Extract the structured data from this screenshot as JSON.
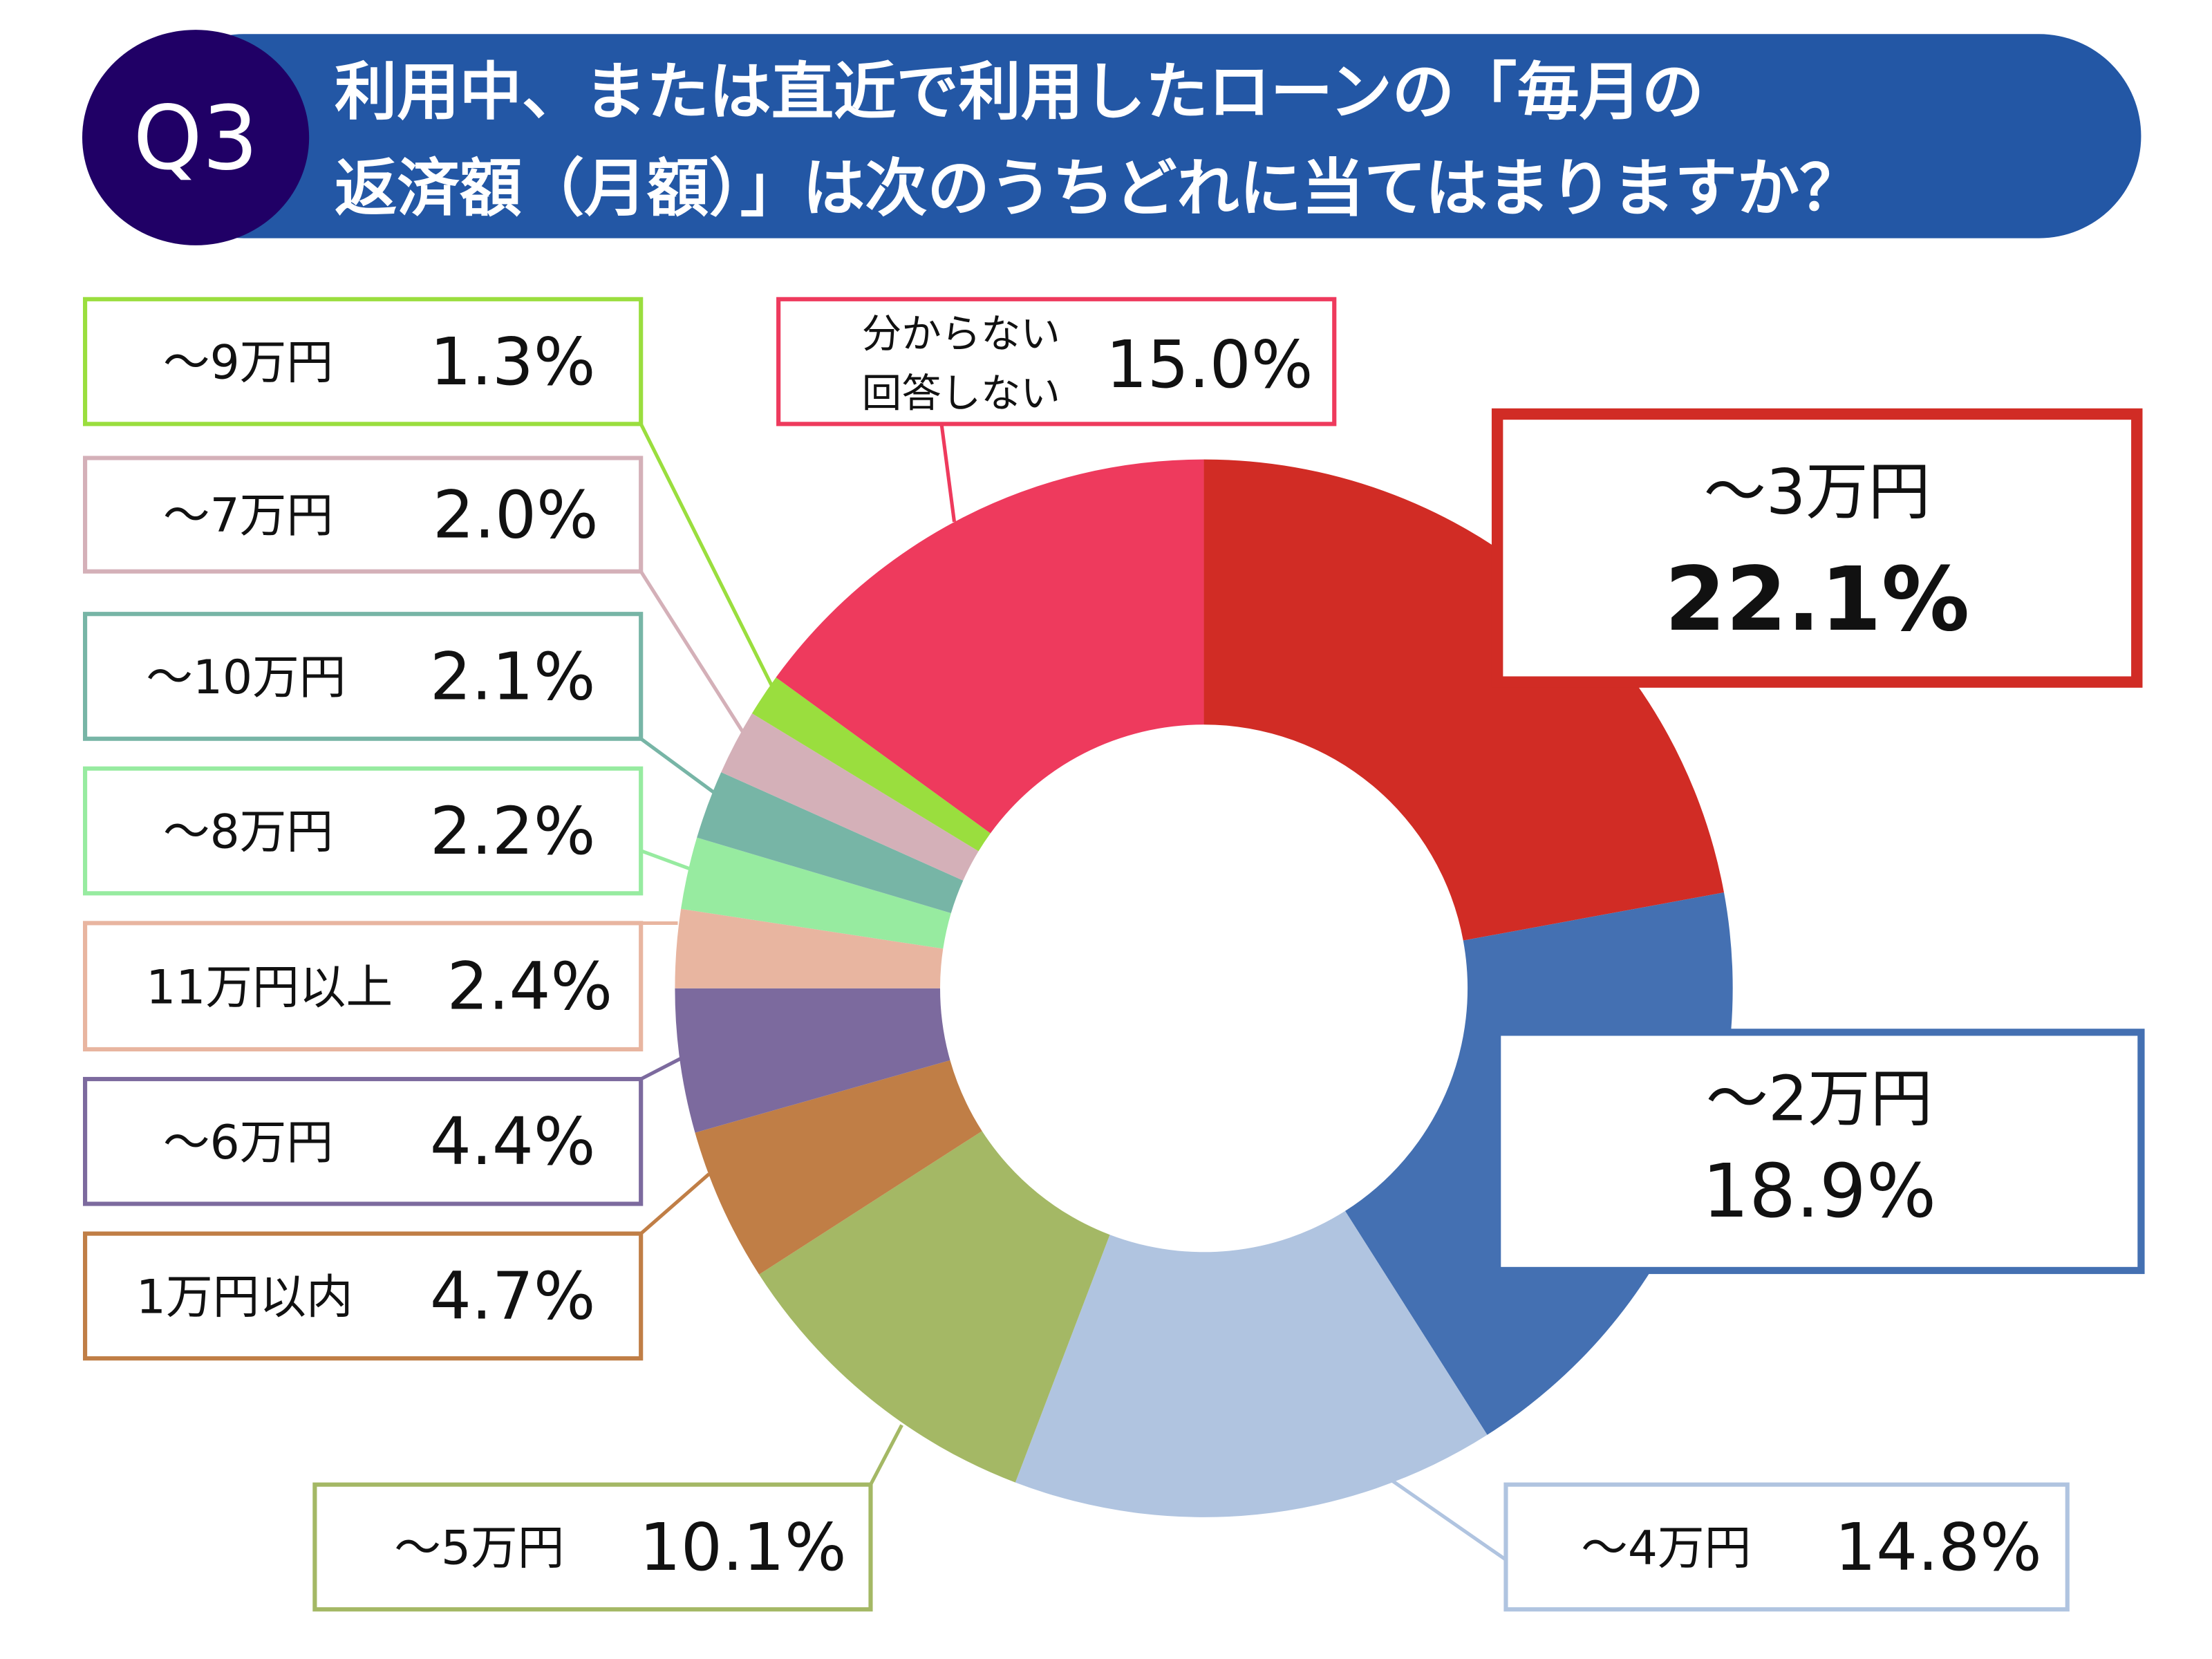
{
  "header": {
    "badge": "Q3",
    "title_line1": "利用中、または直近で利用したローンの「毎月の",
    "title_line2": "返済額（月額）」は次のうちどれに当てはまりますか？",
    "badge_color": "#200066",
    "bar_color": "#2357A5"
  },
  "chart_data": {
    "type": "pie",
    "donut": true,
    "start": "top",
    "direction": "clockwise",
    "title": "利用中、または直近で利用したローンの「毎月の返済額（月額）」は次のうちどれに当てはまりますか？",
    "unit": "%",
    "categories": [
      "～3万円",
      "～2万円",
      "～4万円",
      "～5万円",
      "1万円以内",
      "～6万円",
      "11万円以上",
      "～8万円",
      "～10万円",
      "～7万円",
      "～9万円",
      "分からない 回答しない"
    ],
    "values": [
      22.1,
      18.9,
      14.8,
      10.1,
      4.7,
      4.4,
      2.4,
      2.2,
      2.1,
      2.0,
      1.3,
      15.0
    ],
    "colors": [
      "#D12C25",
      "#4470B2",
      "#B0C4E0",
      "#A4B865",
      "#C07E46",
      "#7C6A9E",
      "#E8B5A0",
      "#97EBA0",
      "#77B5A6",
      "#D4B0B8",
      "#9ADE3E",
      "#EE3A5D"
    ],
    "labels": [
      {
        "name": "～3万円",
        "value": "22.1%"
      },
      {
        "name": "～2万円",
        "value": "18.9%"
      },
      {
        "name": "～4万円",
        "value": "14.8%"
      },
      {
        "name": "～5万円",
        "value": "10.1%"
      },
      {
        "name": "1万円以内",
        "value": "4.7%"
      },
      {
        "name": "～6万円",
        "value": "4.4%"
      },
      {
        "name": "11万円以上",
        "value": "2.4%"
      },
      {
        "name": "～8万円",
        "value": "2.2%"
      },
      {
        "name": "～10万円",
        "value": "2.1%"
      },
      {
        "name": "～7万円",
        "value": "2.0%"
      },
      {
        "name": "～9万円",
        "value": "1.3%"
      },
      {
        "name_line1": "分からない",
        "name_line2": "回答しない",
        "value": "15.0%"
      }
    ]
  }
}
